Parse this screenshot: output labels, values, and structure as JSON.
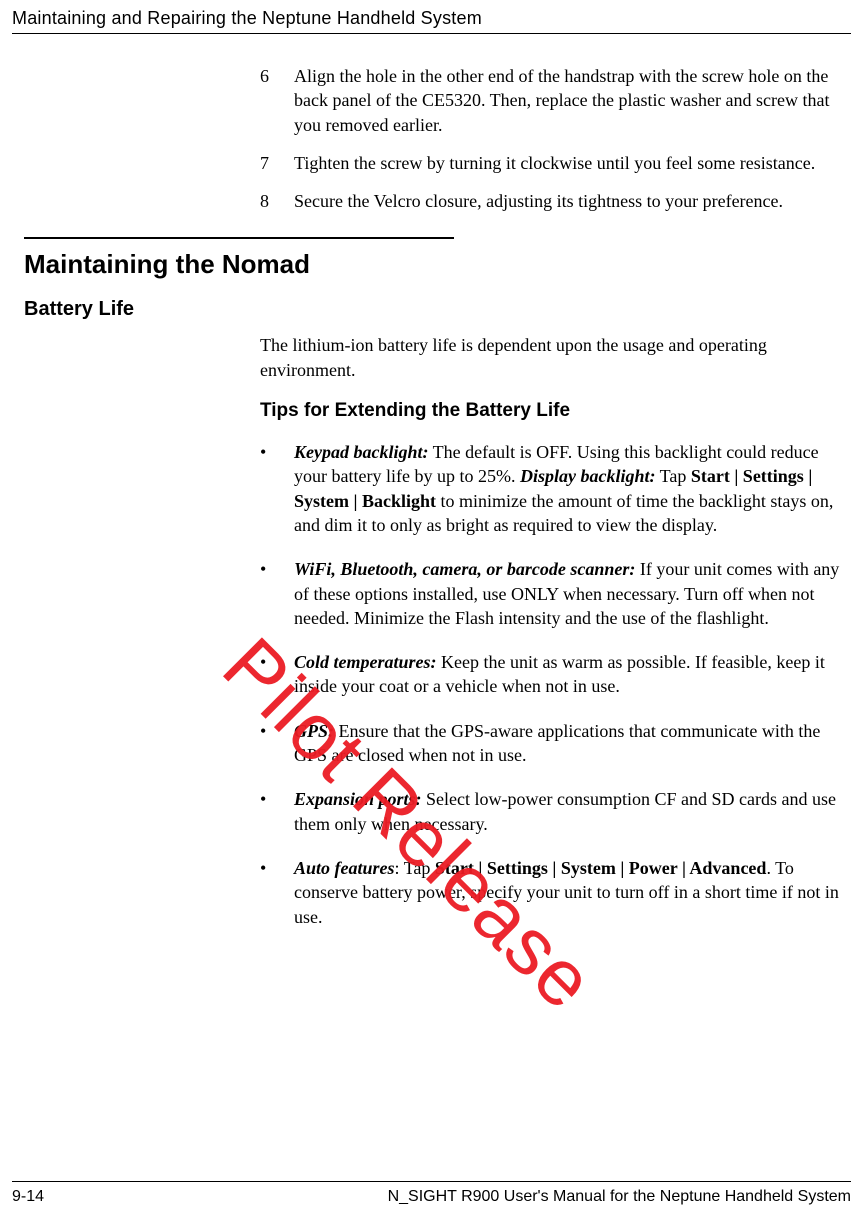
{
  "header": {
    "running_title": "Maintaining and Repairing the Neptune Handheld System"
  },
  "watermark": {
    "text": "Pilot Release"
  },
  "steps": [
    {
      "num": "6",
      "text": "Align the hole in the other end of the handstrap with the screw hole on the back panel of the CE5320. Then, replace the plastic washer and screw that you removed earlier."
    },
    {
      "num": "7",
      "text": "Tighten the screw by turning it clockwise until you feel some resistance."
    },
    {
      "num": "8",
      "text": "Secure the Velcro closure, adjusting its tightness to your preference."
    }
  ],
  "section": {
    "title": "Maintaining the Nomad"
  },
  "subsection": {
    "title": "Battery Life"
  },
  "intro": "The lithium-ion battery life is dependent upon the usage and operating environment.",
  "tips_heading": "Tips for Extending the Battery Life",
  "bullets": {
    "dot": "•",
    "b1": {
      "lead": "Keypad backlight:",
      "mid1": " The default is OFF. Using this backlight could reduce your battery life by up to 25%. ",
      "lead2": "Display backlight:",
      "mid2": " Tap ",
      "bold_path": "Start | Settings | System | Backlight",
      "tail": " to minimize the amount of time the backlight stays on, and dim it to only as bright as required to view the display."
    },
    "b2": {
      "lead": "WiFi, Bluetooth, camera, or barcode scanner:",
      "tail": " If your unit comes with any of these options installed, use ONLY when necessary. Turn off when not needed. Minimize the Flash intensity and the use of the flashlight."
    },
    "b3": {
      "lead": "Cold temperatures:",
      "tail": " Keep the unit as warm as possible. If feasible, keep it inside your coat or a vehicle when not in use."
    },
    "b4": {
      "lead": "GPS:",
      "tail": " Ensure that the GPS-aware applications that communicate with the GPS are closed when not in use."
    },
    "b5": {
      "lead": "Expansion ports:",
      "tail": " Select low-power consumption CF and SD cards and use them only when necessary."
    },
    "b6": {
      "lead": "Auto features",
      "colon_tap": ": Tap ",
      "bold_path": "Start | Settings | System | Power | Advanced",
      "tail": ". To conserve battery power, specify your unit to turn off in a short time if not in use."
    }
  },
  "footer": {
    "page": "9-14",
    "title": "N_SIGHT R900 User's Manual for the Neptune Handheld System"
  }
}
